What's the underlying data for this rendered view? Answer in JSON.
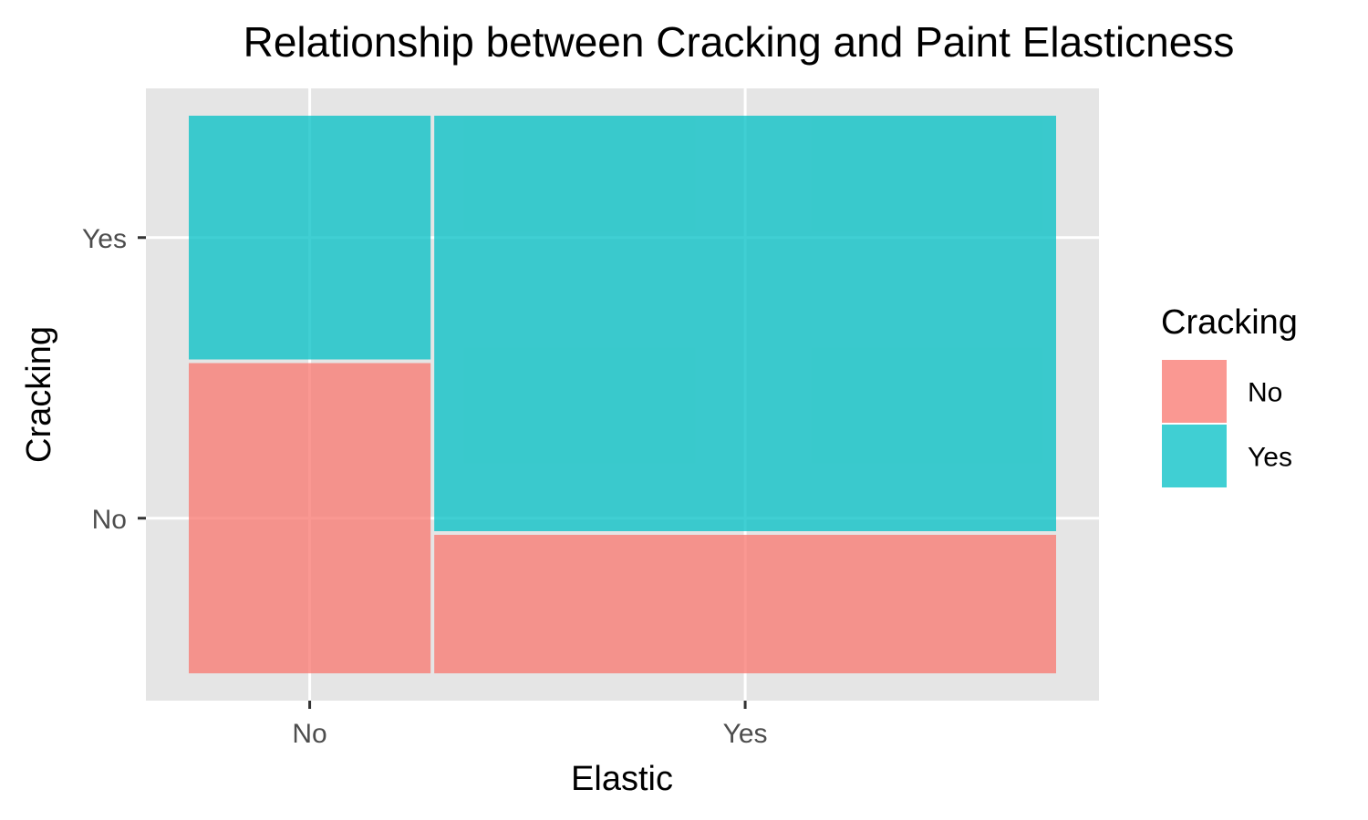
{
  "chart_data": {
    "type": "mosaic",
    "title": "Relationship between Cracking and Paint Elasticness",
    "xlabel": "Elastic",
    "ylabel": "Cracking",
    "x_categories": [
      "No",
      "Yes"
    ],
    "y_categories": [
      "No",
      "Yes"
    ],
    "x_proportions": [
      0.28,
      0.72
    ],
    "conditional_proportions": {
      "No": {
        "No": 0.56,
        "Yes": 0.44
      },
      "Yes": {
        "No": 0.25,
        "Yes": 0.75
      }
    },
    "x_tick_labels": [
      "No",
      "Yes"
    ],
    "y_tick_labels": [
      "No",
      "Yes"
    ],
    "legend": {
      "title": "Cracking",
      "position": "right",
      "entries": [
        {
          "label": "No",
          "color": "#F8766D"
        },
        {
          "label": "Yes",
          "color": "#00BFC4"
        }
      ]
    },
    "fill_opacity": 0.75,
    "panel_background": "#E5E5E5",
    "grid": true
  }
}
